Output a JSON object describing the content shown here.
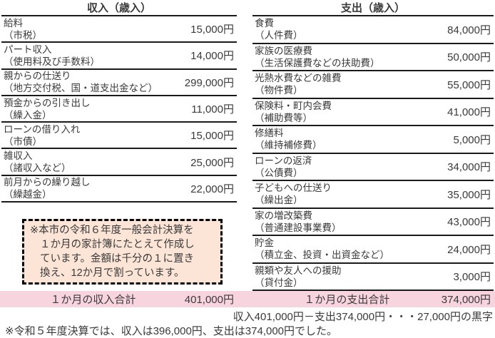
{
  "income_table": {
    "title": "収入（歳入）",
    "rows": [
      {
        "label": "給料",
        "sublabel": "（市税）",
        "value": "15,000円"
      },
      {
        "label": "パート収入",
        "sublabel": "（使用料及び手数料）",
        "value": "14,000円"
      },
      {
        "label": "親からの仕送り",
        "sublabel": "（地方交付税、国・道支出金など）",
        "value": "299,000円"
      },
      {
        "label": "預金からの引き出し",
        "sublabel": "（繰入金）",
        "value": "11,000円"
      },
      {
        "label": "ローンの借り入れ",
        "sublabel": "（市債）",
        "value": "15,000円"
      },
      {
        "label": "雑収入",
        "sublabel": "（諸収入など）",
        "value": "25,000円"
      },
      {
        "label": "前月からの繰り越し",
        "sublabel": "（繰越金）",
        "value": "22,000円"
      }
    ],
    "total_label": "１か月の収入合計",
    "total_value": "401,000円"
  },
  "expense_table": {
    "title": "支出（歳入）",
    "rows": [
      {
        "label": "食費",
        "sublabel": "（人件費）",
        "value": "84,000円"
      },
      {
        "label": "家族の医療費",
        "sublabel": "（生活保護費などの扶助費）",
        "value": "50,000円"
      },
      {
        "label": "光熱水費などの雑費",
        "sublabel": "（物件費）",
        "value": "55,000円"
      },
      {
        "label": "保険料・町内会費",
        "sublabel": "（補助費等）",
        "value": "41,000円"
      },
      {
        "label": "修繕料",
        "sublabel": "（維持補修費）",
        "value": "5,000円"
      },
      {
        "label": "ローンの返済",
        "sublabel": "（公債費）",
        "value": "34,000円"
      },
      {
        "label": "子どもへの仕送り",
        "sublabel": "（繰出金）",
        "value": "35,000円"
      },
      {
        "label": "家の増改築費",
        "sublabel": "（普通建設事業費）",
        "value": "43,000円"
      },
      {
        "label": "貯金",
        "sublabel": "（積立金、投資・出資金など）",
        "value": "24,000円"
      },
      {
        "label": "親類や友人への援助",
        "sublabel": "（貸付金）",
        "value": "3,000円"
      }
    ],
    "total_label": "１か月の支出合計",
    "total_value": "374,000円"
  },
  "note_box": {
    "lines": [
      "※本市の令和６年度一般会計決算を",
      "１か月の家計簿にたとえて作成し",
      "ています。金額は千分の１に置き",
      "換え、12か月で割っています。"
    ]
  },
  "summary_line": "収入401,000円－支出374,000円・・・27,000円の黒字",
  "footnote": "※令和５年度決算では、収入は396,000円、支出は374,000円でした。",
  "colors": {
    "total_band_pink": "#F8D4DF",
    "note_box_peach": "#FCE4D6",
    "text": "#3A3A3A",
    "border": "#1A1A1A"
  }
}
